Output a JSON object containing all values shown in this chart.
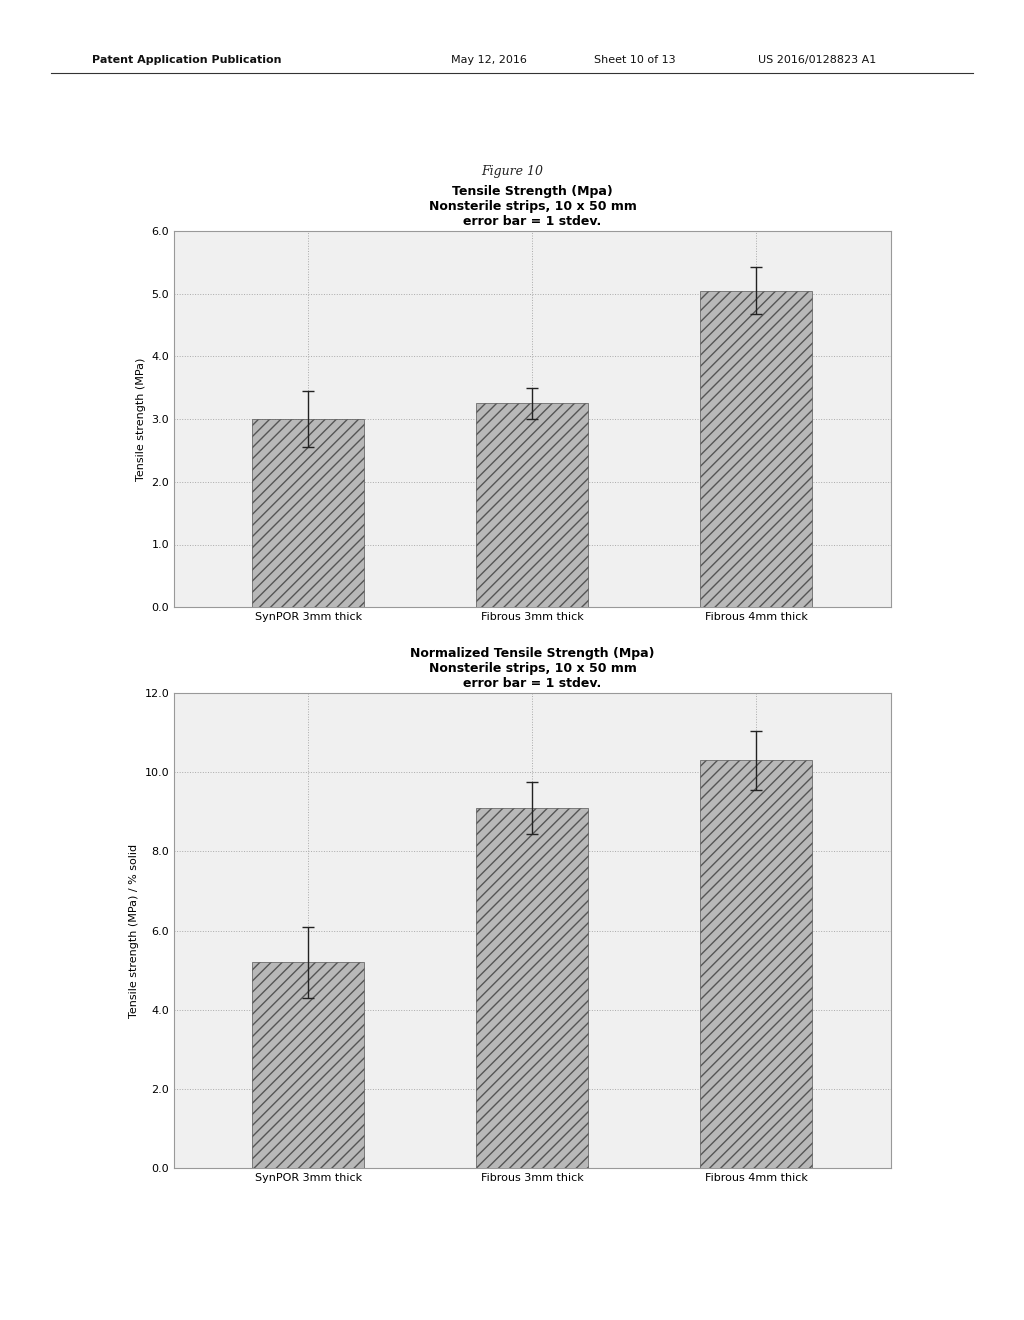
{
  "figure_label": "Figure 10",
  "header_line1": "Patent Application Publication",
  "header_line2": "May 12, 2016",
  "header_line3": "Sheet 10 of 13",
  "header_line4": "US 2016/0128823 A1",
  "chart1": {
    "title": "Tensile Strength (Mpa)",
    "subtitle1": "Nonsterile strips, 10 x 50 mm",
    "subtitle2": "error bar = 1 stdev.",
    "ylabel": "Tensile strength (MPa)",
    "categories": [
      "SynPOR 3mm thick",
      "Fibrous 3mm thick",
      "Fibrous 4mm thick"
    ],
    "values": [
      3.0,
      3.25,
      5.05
    ],
    "errors": [
      0.45,
      0.25,
      0.38
    ],
    "ylim": [
      0.0,
      6.0
    ],
    "yticks": [
      0.0,
      1.0,
      2.0,
      3.0,
      4.0,
      5.0,
      6.0
    ]
  },
  "chart2": {
    "title": "Normalized Tensile Strength (Mpa)",
    "subtitle1": "Nonsterile strips, 10 x 50 mm",
    "subtitle2": "error bar = 1 stdev.",
    "ylabel": "Tensile strength (MPa) / % solid",
    "categories": [
      "SynPOR 3mm thick",
      "Fibrous 3mm thick",
      "Fibrous 4mm thick"
    ],
    "values": [
      5.2,
      9.1,
      10.3
    ],
    "errors": [
      0.9,
      0.65,
      0.75
    ],
    "ylim": [
      0.0,
      12.0
    ],
    "yticks": [
      0.0,
      2.0,
      4.0,
      6.0,
      8.0,
      10.0,
      12.0
    ]
  },
  "bar_color": "#b8b8b8",
  "bar_hatch": "///",
  "bar_edgecolor": "#555555",
  "bar_width": 0.5,
  "grid_color": "#aaaaaa",
  "bg_color": "#ffffff",
  "plot_bg_color": "#f0f0f0",
  "border_color": "#999999",
  "title_fontsize": 9,
  "subtitle_fontsize": 8,
  "tick_fontsize": 8,
  "ylabel_fontsize": 8,
  "xlabel_fontsize": 8,
  "figure_label_fontsize": 9
}
